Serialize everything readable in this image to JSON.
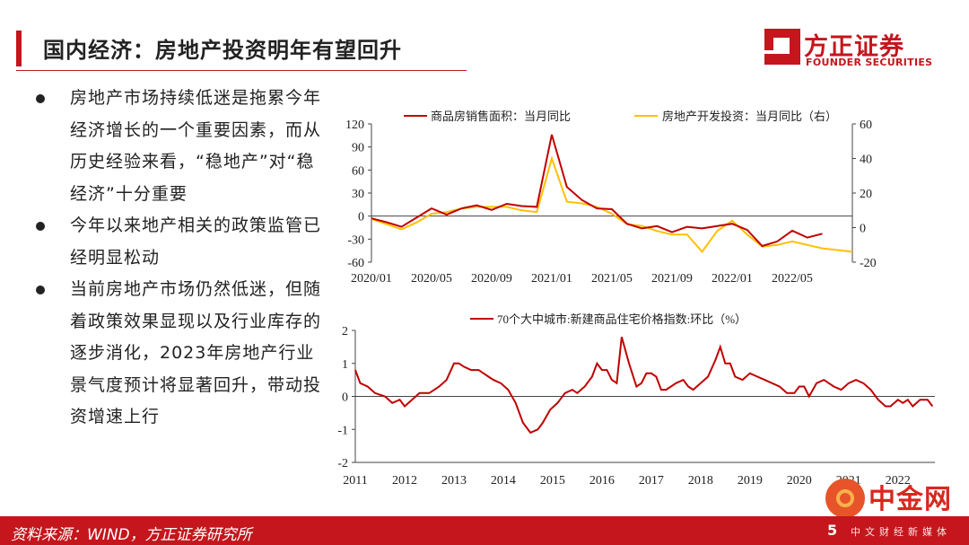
{
  "slide": {
    "title": "国内经济：房地产投资明年有望回升",
    "logo_name": "方正证券",
    "logo_en": "FOUNDER SECURITIES",
    "source": "资料来源：WIND，方正证券研究所",
    "page_number": "5",
    "watermark": "中金网",
    "watermark_url": "CNGOLD.COM.CN",
    "watermark_sub": "中文财经新媒体",
    "colors": {
      "brand": "#c4161c",
      "series_red": "#c00000",
      "series_gold": "#ffc000"
    }
  },
  "bullets": [
    {
      "text": "房地产市场持续低迷是拖累今年经济增长的一个重要因素，而从历史经验来看，“稳地产”对“稳经济”十分重要"
    },
    {
      "text": "今年以来地产相关的政策监管已经明显松动"
    },
    {
      "text": "当前房地产市场仍然低迷，但随着政策效果显现以及行业库存的逐步消化，2023年房地产行业景气度预计将显著回升，带动投资增速上行"
    }
  ],
  "chart_data": [
    {
      "type": "line",
      "x": [
        "2020/01",
        "2020/02",
        "2020/03",
        "2020/04",
        "2020/05",
        "2020/06",
        "2020/07",
        "2020/08",
        "2020/09",
        "2020/10",
        "2020/11",
        "2020/12",
        "2021/01",
        "2021/02",
        "2021/03",
        "2021/04",
        "2021/05",
        "2021/06",
        "2021/07",
        "2021/08",
        "2021/09",
        "2021/10",
        "2021/11",
        "2021/12",
        "2022/01",
        "2022/02",
        "2022/03",
        "2022/04",
        "2022/05",
        "2022/06",
        "2022/07",
        "2022/08",
        "2022/09"
      ],
      "xticks": [
        "2020/01",
        "2020/05",
        "2020/09",
        "2021/01",
        "2021/05",
        "2021/09",
        "2022/01",
        "2022/05"
      ],
      "series": [
        {
          "name": "商品房销售面积：当月同比",
          "axis": "left",
          "values": [
            -3,
            -8,
            -14,
            -2,
            10,
            2,
            10,
            14,
            8,
            16,
            13,
            12,
            106,
            38,
            21,
            10,
            9,
            -10,
            -16,
            -13,
            -21,
            -14,
            -16,
            -13,
            -10,
            -18,
            -39,
            -33,
            -19,
            -28,
            -23,
            null,
            null
          ]
        },
        {
          "name": "房地产开发投资：当月同比（右）",
          "axis": "right",
          "values": [
            5,
            2,
            -1,
            3,
            8,
            9,
            11,
            12,
            12,
            12,
            10,
            9,
            40,
            15,
            14,
            12,
            8,
            2,
            1,
            -2,
            -4,
            -4,
            -14,
            -2,
            4,
            -4,
            -11,
            -10,
            -8,
            -10,
            -12,
            -13,
            -14
          ]
        }
      ],
      "ylim": [
        -60,
        120
      ],
      "yticks": [
        -60,
        -30,
        0,
        30,
        60,
        90,
        120
      ],
      "y2lim": [
        -20,
        60
      ],
      "y2ticks": [
        -20,
        0,
        20,
        40,
        60
      ],
      "legend": "top"
    },
    {
      "type": "line",
      "xlim": [
        2011,
        2022.75
      ],
      "xticks": [
        "2011",
        "2012",
        "2013",
        "2014",
        "2015",
        "2016",
        "2017",
        "2018",
        "2019",
        "2020",
        "2021",
        "2022"
      ],
      "series": [
        {
          "name": "70个大中城市:新建商品住宅价格指数:环比（%）",
          "x": [
            2011,
            2011.1,
            2011.25,
            2011.4,
            2011.6,
            2011.75,
            2011.9,
            2012.0,
            2012.15,
            2012.3,
            2012.5,
            2012.7,
            2012.85,
            2013.0,
            2013.1,
            2013.2,
            2013.35,
            2013.5,
            2013.6,
            2013.7,
            2013.8,
            2013.95,
            2014.1,
            2014.25,
            2014.4,
            2014.55,
            2014.7,
            2014.8,
            2014.95,
            2015.1,
            2015.25,
            2015.4,
            2015.5,
            2015.65,
            2015.8,
            2015.9,
            2016.0,
            2016.1,
            2016.2,
            2016.3,
            2016.4,
            2016.55,
            2016.7,
            2016.8,
            2016.9,
            2017.0,
            2017.1,
            2017.2,
            2017.3,
            2017.5,
            2017.65,
            2017.75,
            2017.85,
            2018.0,
            2018.15,
            2018.3,
            2018.4,
            2018.5,
            2018.6,
            2018.7,
            2018.85,
            2019.0,
            2019.15,
            2019.3,
            2019.45,
            2019.6,
            2019.75,
            2019.9,
            2020.0,
            2020.1,
            2020.2,
            2020.35,
            2020.5,
            2020.6,
            2020.7,
            2020.85,
            2021.0,
            2021.15,
            2021.3,
            2021.45,
            2021.6,
            2021.75,
            2021.85,
            2022.0,
            2022.1,
            2022.2,
            2022.3,
            2022.45,
            2022.6,
            2022.7
          ],
          "values": [
            0.8,
            0.4,
            0.3,
            0.1,
            0.0,
            -0.2,
            -0.1,
            -0.3,
            -0.1,
            0.1,
            0.1,
            0.3,
            0.5,
            1.0,
            1.0,
            0.9,
            0.8,
            0.8,
            0.7,
            0.6,
            0.5,
            0.4,
            0.2,
            -0.2,
            -0.8,
            -1.1,
            -1.0,
            -0.8,
            -0.4,
            -0.2,
            0.1,
            0.2,
            0.1,
            0.3,
            0.6,
            1.0,
            0.8,
            0.8,
            0.5,
            0.4,
            1.8,
            1.0,
            0.3,
            0.4,
            0.7,
            0.7,
            0.6,
            0.2,
            0.2,
            0.4,
            0.5,
            0.3,
            0.2,
            0.4,
            0.6,
            1.1,
            1.5,
            1.0,
            1.0,
            0.6,
            0.5,
            0.7,
            0.6,
            0.5,
            0.4,
            0.3,
            0.1,
            0.1,
            0.3,
            0.3,
            0.0,
            0.4,
            0.5,
            0.4,
            0.3,
            0.2,
            0.4,
            0.5,
            0.4,
            0.2,
            -0.1,
            -0.3,
            -0.3,
            -0.1,
            -0.2,
            -0.1,
            -0.3,
            -0.1,
            -0.1,
            -0.3
          ]
        }
      ],
      "ylim": [
        -2,
        2
      ],
      "yticks": [
        -2,
        -1,
        0,
        1,
        2
      ],
      "legend": "top"
    }
  ]
}
